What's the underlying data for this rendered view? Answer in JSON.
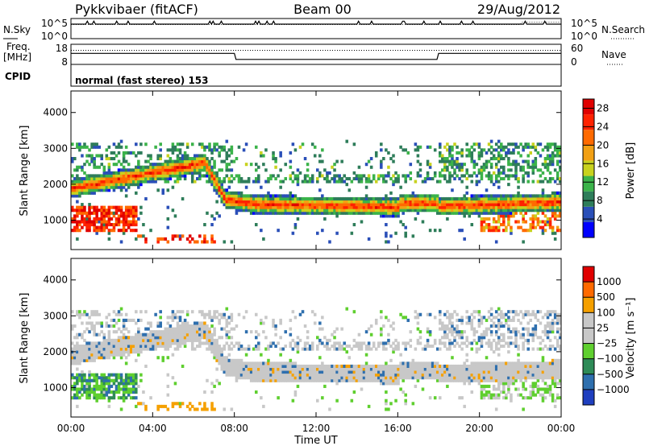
{
  "header": {
    "station": "Pykkvibaer (fitACF)",
    "beam": "Beam 00",
    "date": "29/Aug/2012"
  },
  "nsky_panel": {
    "left_label": "N.Sky",
    "right_label": "N.Search",
    "left_ticks": [
      "10^5",
      "10^0"
    ],
    "right_ticks": [
      "10^5",
      "10^0"
    ]
  },
  "freq_panel": {
    "left_label_line1": "Freq.",
    "left_label_line2": "[MHz]",
    "right_label": "Nave",
    "left_ticks": [
      "18",
      "8"
    ],
    "right_ticks": [
      "60",
      "0"
    ]
  },
  "cpid_panel": {
    "label": "CPID",
    "text": "normal (fast stereo) 153"
  },
  "chart_data": [
    {
      "type": "heatmap",
      "title": "",
      "xlabel": "",
      "ylabel": "Slant Range [km]",
      "x_ticks": [
        "00:00",
        "04:00",
        "08:00",
        "12:00",
        "16:00",
        "20:00",
        "00:00"
      ],
      "y_ticks": [
        "1000",
        "2000",
        "3000",
        "4000"
      ],
      "ylim": [
        180,
        4600
      ],
      "colorbar_label": "Power [dB]",
      "colorbar_ticks": [
        "4",
        "8",
        "12",
        "16",
        "20",
        "24",
        "28"
      ],
      "colorbar_range": [
        0,
        30
      ],
      "colorbar_colors": [
        "#0000ff",
        "#2a4fb8",
        "#2e7d5a",
        "#3bb34a",
        "#c8d21e",
        "#f2a014",
        "#ff6a00",
        "#ff2200",
        "#e00000"
      ]
    },
    {
      "type": "heatmap",
      "title": "",
      "xlabel": "Time UT",
      "ylabel": "Slant Range [km]",
      "x_ticks": [
        "00:00",
        "04:00",
        "08:00",
        "12:00",
        "16:00",
        "20:00",
        "00:00"
      ],
      "y_ticks": [
        "1000",
        "2000",
        "3000",
        "4000"
      ],
      "ylim": [
        180,
        4600
      ],
      "colorbar_label": "Velocity [m s⁻¹]",
      "colorbar_ticks": [
        "1000",
        "500",
        "100",
        "25",
        "−25",
        "−100",
        "−500",
        "−1000"
      ],
      "colorbar_colors": [
        "#1f3fbf",
        "#2e6fae",
        "#2e8b57",
        "#5fcf2f",
        "#c8c8c8",
        "#c8c8c8",
        "#f5a000",
        "#ff6a00",
        "#e00000"
      ]
    }
  ]
}
